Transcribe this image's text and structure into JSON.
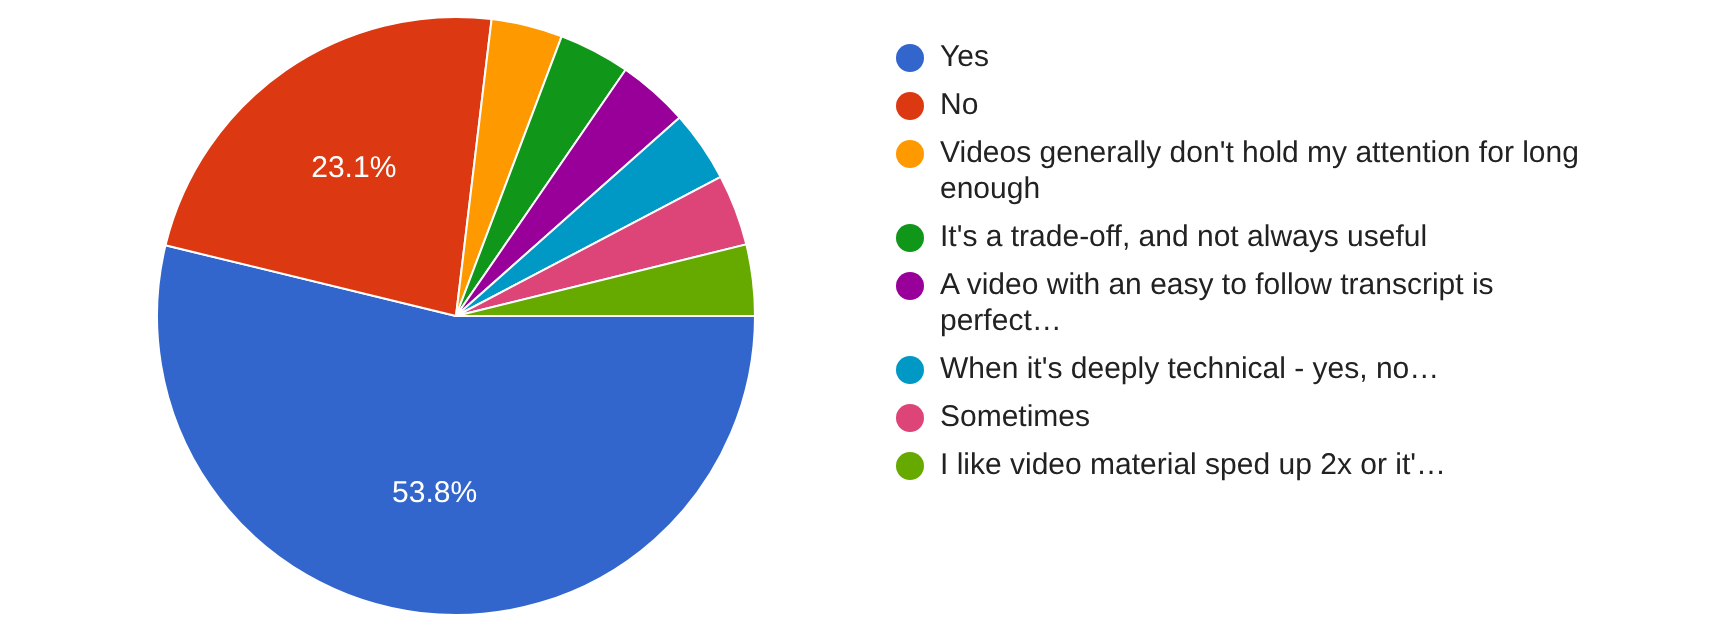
{
  "chart_data": {
    "type": "pie",
    "categories": [
      "Yes",
      "No",
      "Videos generally don't hold my attention for long enough",
      "It's a trade-off, and not always useful",
      "A video with an easy to follow transcript is perfect…",
      "When it's deeply technical - yes, no…",
      "Sometimes",
      "I like video material sped up 2x or it'…"
    ],
    "values": [
      53.8,
      23.1,
      3.85,
      3.85,
      3.85,
      3.85,
      3.85,
      3.85
    ],
    "colors": [
      "#3366cc",
      "#dc3912",
      "#ff9900",
      "#109618",
      "#990099",
      "#0099c6",
      "#dd4477",
      "#66aa00"
    ],
    "value_labels": [
      "53.8%",
      "23.1%",
      null,
      null,
      null,
      null,
      null,
      null
    ],
    "legend": "right"
  }
}
